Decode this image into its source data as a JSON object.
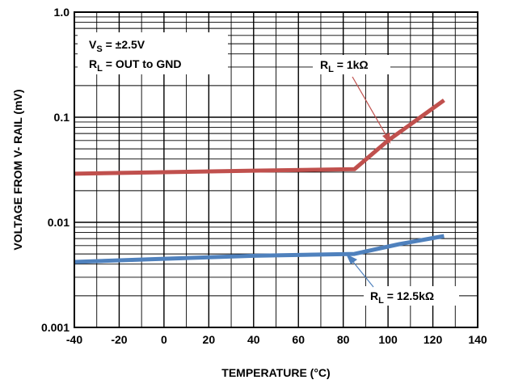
{
  "chart_data": {
    "type": "line",
    "xlabel": "TEMPERATURE (°C)",
    "ylabel": "VOLTAGE FROM V- RAIL (mV)",
    "xlim": [
      -40,
      140
    ],
    "ylim": [
      0.001,
      1.0
    ],
    "y_scale": "log",
    "grid": true,
    "x_ticks": [
      -40,
      -20,
      0,
      20,
      40,
      60,
      80,
      100,
      120,
      140
    ],
    "x_tick_labels": [
      "-40",
      "-20",
      "0",
      "20",
      "40",
      "60",
      "80",
      "100",
      "120",
      "140"
    ],
    "y_ticks": [
      0.001,
      0.01,
      0.1,
      1.0
    ],
    "y_tick_labels": [
      "0.001",
      "0.01",
      "0.1",
      "1.0"
    ],
    "series": [
      {
        "color": "#c0504d",
        "points": [
          [
            -40,
            0.029
          ],
          [
            0,
            0.03
          ],
          [
            40,
            0.031
          ],
          [
            85,
            0.032
          ],
          [
            100,
            0.06
          ],
          [
            125,
            0.145
          ]
        ]
      },
      {
        "color": "#4f81bd",
        "points": [
          [
            -40,
            0.0042
          ],
          [
            0,
            0.0045
          ],
          [
            40,
            0.0048
          ],
          [
            85,
            0.005
          ],
          [
            105,
            0.0062
          ],
          [
            125,
            0.0074
          ]
        ]
      }
    ],
    "annotations": {
      "conditions_line1_main": "V",
      "conditions_line1_sub": "S",
      "conditions_line1_rest": " = ±2.5V",
      "conditions_line2_main": "R",
      "conditions_line2_sub": "L",
      "conditions_line2_rest": " = OUT to GND",
      "label_1k_main": "R",
      "label_1k_sub": "L",
      "label_1k_rest": " = 1kΩ",
      "label_12k_main": "R",
      "label_12k_sub": "L",
      "label_12k_rest": " = 12.5kΩ"
    }
  }
}
